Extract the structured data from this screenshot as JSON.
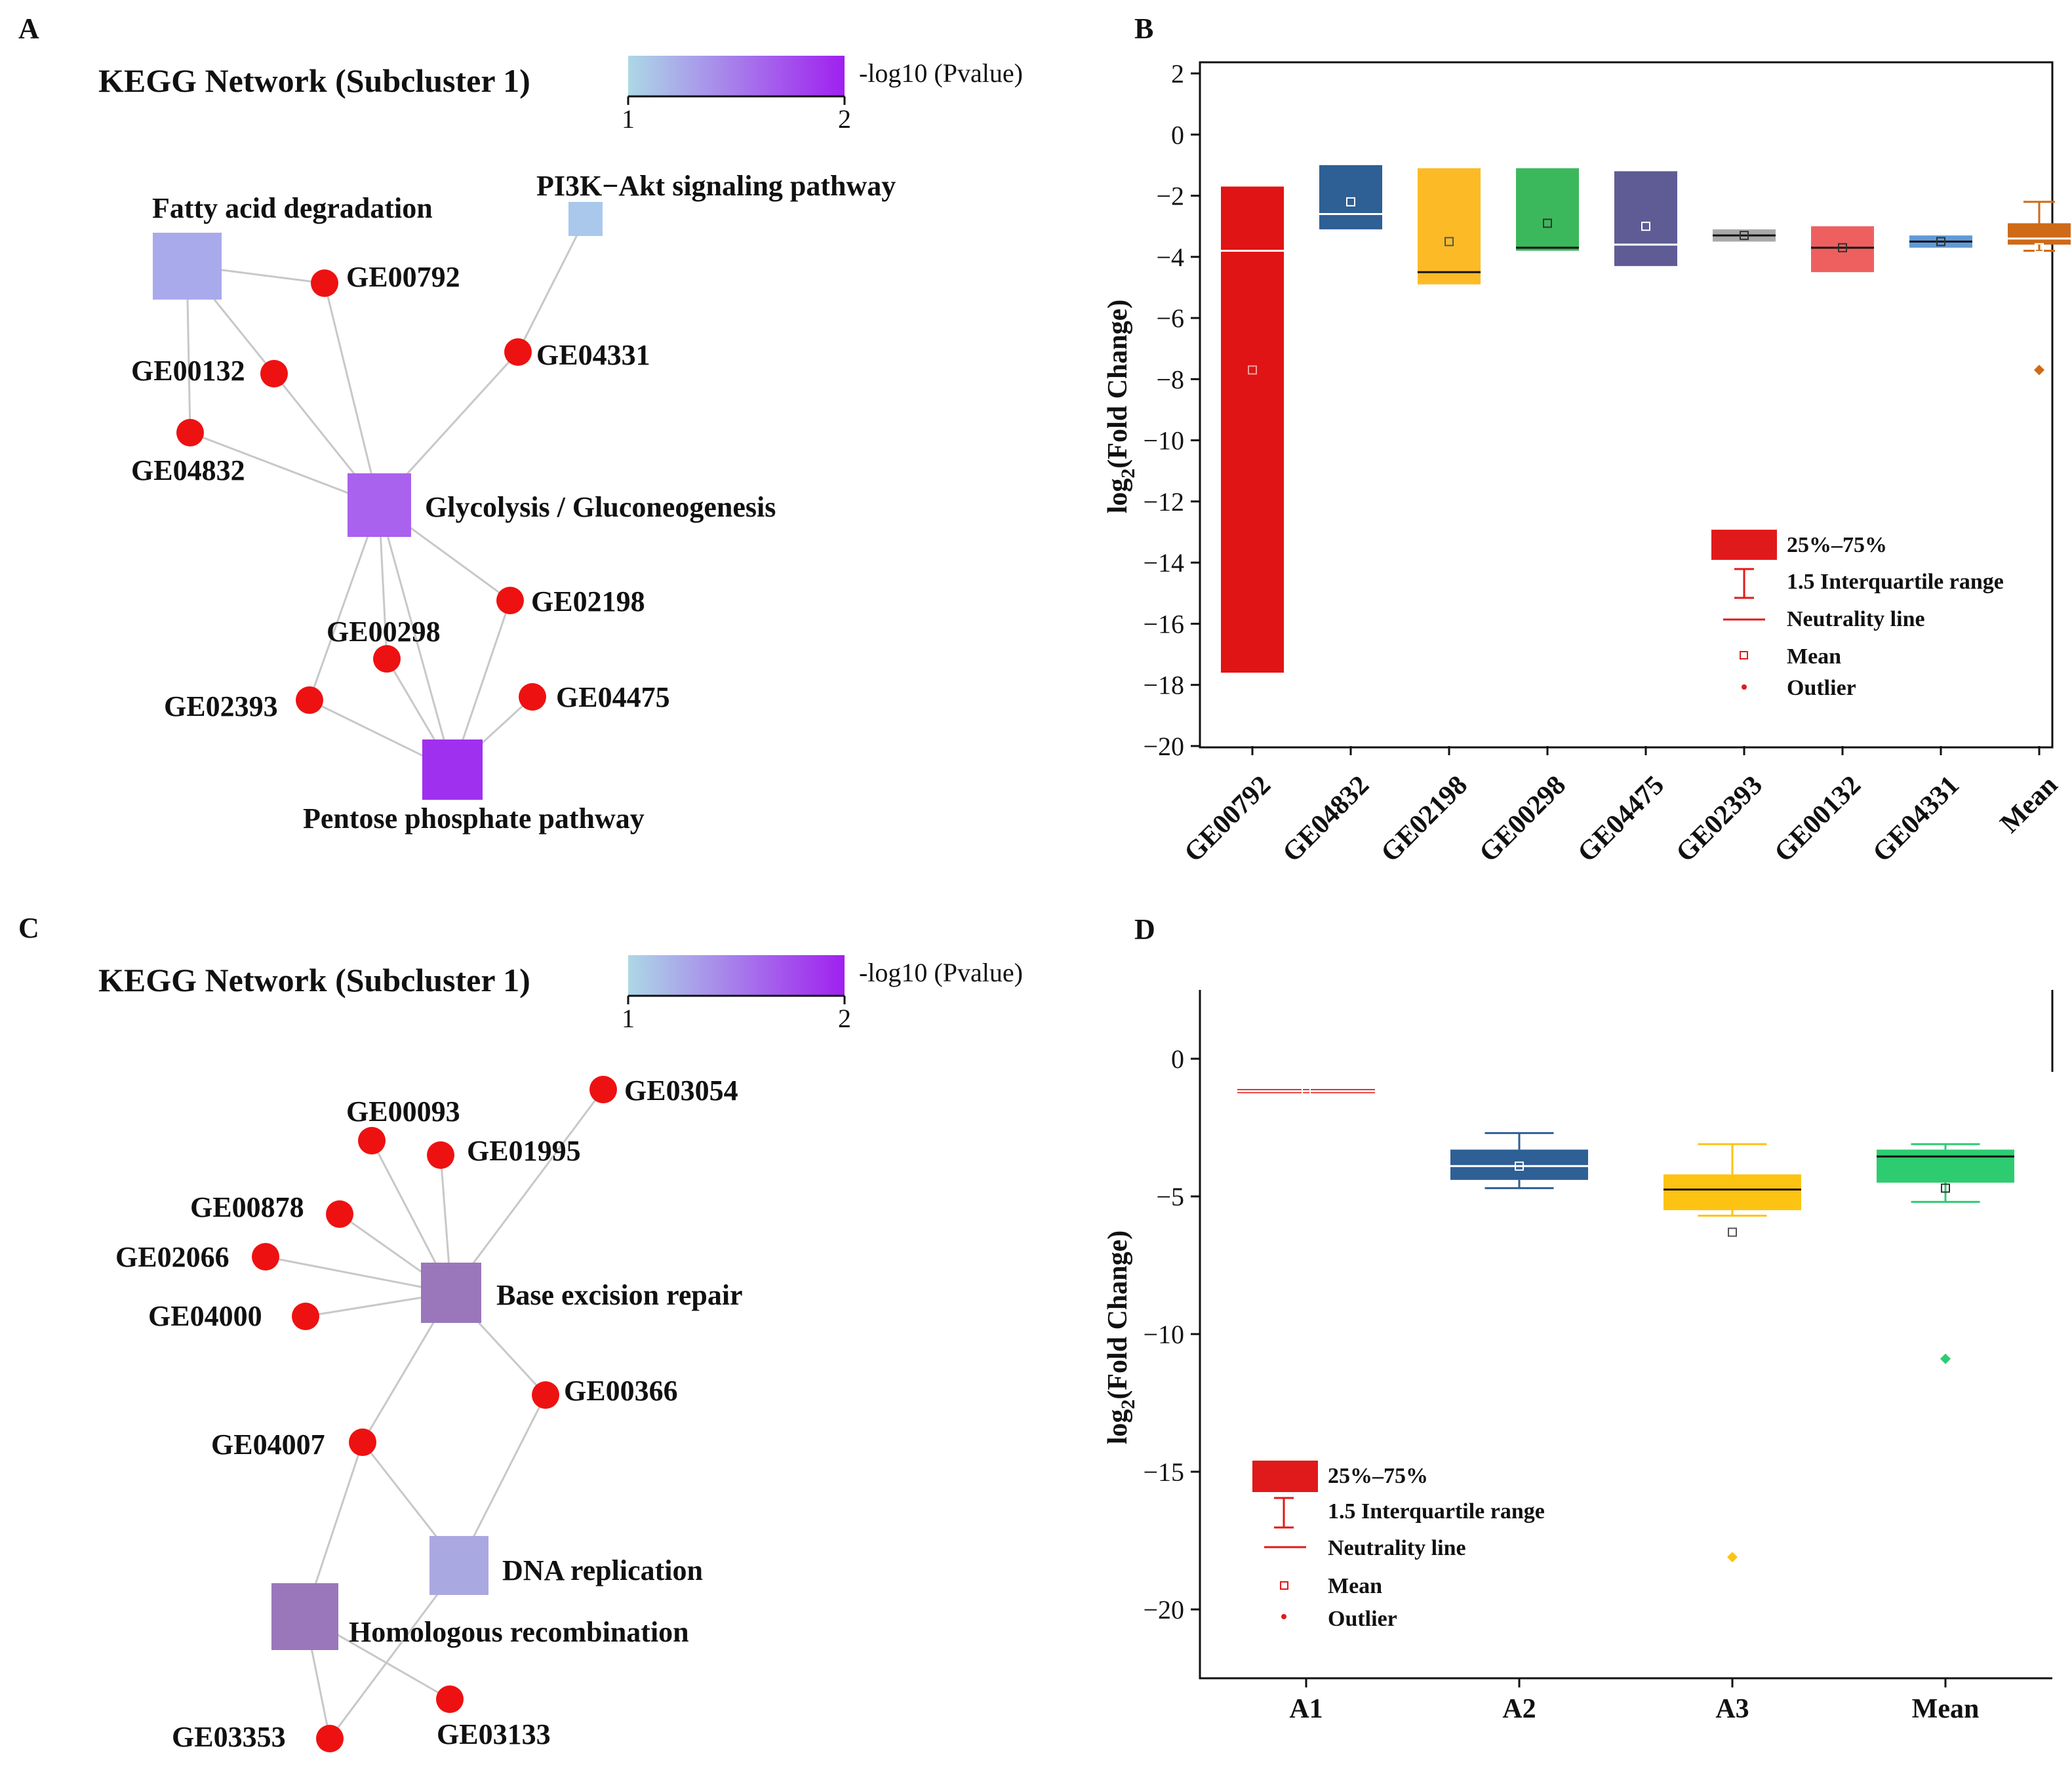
{
  "panels": {
    "A": {
      "letter": "A",
      "title": "KEGG Network (Subcluster 1)",
      "colorbar": {
        "label": "-log10 (Pvalue)",
        "min_label": "1",
        "max_label": "2",
        "color_low": "#add8e6",
        "color_high": "#a020f0"
      },
      "pathways": [
        {
          "id": "fad",
          "label": "Fatty acid degradation",
          "color": "#a9aaec"
        },
        {
          "id": "pi3k",
          "label": "PI3K−Akt signaling pathway",
          "color": "#a9c8ec"
        },
        {
          "id": "glyc",
          "label": "Glycolysis / Gluconeogenesis",
          "color": "#a962ee"
        },
        {
          "id": "ppp",
          "label": "Pentose phosphate pathway",
          "color": "#a030ef"
        }
      ],
      "genes": [
        "GE00792",
        "GE04331",
        "GE00132",
        "GE04832",
        "GE02198",
        "GE00298",
        "GE04475",
        "GE02393"
      ],
      "gene_color": "#ee1111"
    },
    "B": {
      "letter": "B",
      "ylabel_main": "log",
      "ylabel_sub": "2",
      "ylabel_rest": "(Fold Change)",
      "legend": {
        "box": "25%–75%",
        "whisker": "1.5 Interquartile range",
        "line": "Neutrality  line",
        "mean": "Mean",
        "outlier": "Outlier",
        "color": "#e01a1a"
      }
    },
    "C": {
      "letter": "C",
      "title": "KEGG Network (Subcluster 1)",
      "colorbar": {
        "label": "-log10 (Pvalue)",
        "min_label": "1",
        "max_label": "2",
        "color_low": "#add8e6",
        "color_high": "#a020f0"
      },
      "pathways": [
        {
          "id": "ber",
          "label": "Base excision repair",
          "color": "#9a77bb"
        },
        {
          "id": "dna",
          "label": "DNA replication",
          "color": "#aaa8e0"
        },
        {
          "id": "hr",
          "label": "Homologous recombination",
          "color": "#9a77bb"
        }
      ],
      "genes": [
        "GE03054",
        "GE00093",
        "GE01995",
        "GE00878",
        "GE02066",
        "GE04000",
        "GE00366",
        "GE04007",
        "GE03353",
        "GE03133"
      ],
      "gene_color": "#ee1111"
    },
    "D": {
      "letter": "D",
      "ylabel_main": "log",
      "ylabel_sub": "2",
      "ylabel_rest": "(Fold Change)",
      "legend": {
        "box": "25%–75%",
        "whisker": "1.5 Interquartile range",
        "line": "Neutrality  line",
        "mean": "Mean",
        "outlier": "Outlier",
        "color": "#e01a1a"
      }
    }
  },
  "chart_data": [
    {
      "panel": "B",
      "type": "box",
      "ylabel": "log2(Fold Change)",
      "ylim": [
        -20,
        2
      ],
      "yticks": [
        2,
        0,
        -2,
        -4,
        -6,
        -8,
        -10,
        -12,
        -14,
        -16,
        -18,
        -20
      ],
      "ytick_labels": [
        "2",
        "0",
        "−2",
        "−4",
        "−6",
        "−8",
        "−10",
        "−12",
        "−14",
        "−16",
        "−18",
        "−20"
      ],
      "categories": [
        "GE00792",
        "GE04832",
        "GE02198",
        "GE00298",
        "GE04475",
        "GE02393",
        "GE00132",
        "GE04331",
        "Mean"
      ],
      "series": [
        {
          "name": "GE00792",
          "q1": -17.6,
          "q3": -1.7,
          "median": -3.8,
          "mean": -7.7,
          "color": "#e01414",
          "median_color": "#ffffff",
          "mean_color": "#f4a0a0"
        },
        {
          "name": "GE04832",
          "q1": -3.1,
          "q3": -1.0,
          "median": -2.6,
          "mean": -2.2,
          "color": "#2e5f95",
          "median_color": "#ffffff",
          "mean_color": "#ffffff"
        },
        {
          "name": "GE02198",
          "q1": -4.9,
          "q3": -1.1,
          "median": -4.5,
          "mean": -3.5,
          "color": "#fcbb26",
          "median_color": "#111111",
          "mean_color": "#555555"
        },
        {
          "name": "GE00298",
          "q1": -3.8,
          "q3": -1.1,
          "median": -3.7,
          "mean": -2.9,
          "color": "#3cb85c",
          "median_color": "#111111",
          "mean_color": "#333333"
        },
        {
          "name": "GE04475",
          "q1": -4.3,
          "q3": -1.2,
          "median": -3.6,
          "mean": -3.0,
          "color": "#5f5b95",
          "median_color": "#ffffff",
          "mean_color": "#ffffff"
        },
        {
          "name": "GE02393",
          "q1": -3.5,
          "q3": -3.1,
          "median": -3.3,
          "mean": -3.3,
          "color": "#a9a9a9",
          "median_color": "#111111",
          "mean_color": "#333333"
        },
        {
          "name": "GE00132",
          "q1": -4.5,
          "q3": -3.0,
          "median": -3.7,
          "mean": -3.7,
          "color": "#ee6060",
          "median_color": "#111111",
          "mean_color": "#333333"
        },
        {
          "name": "GE04331",
          "q1": -3.7,
          "q3": -3.3,
          "median": -3.5,
          "mean": -3.5,
          "color": "#5f9ad8",
          "median_color": "#111111",
          "mean_color": "#333333"
        },
        {
          "name": "Mean",
          "q1": -3.6,
          "q3": -2.9,
          "median": -3.4,
          "mean": -3.7,
          "whisker_low": -3.8,
          "whisker_high": -2.2,
          "outliers": [
            -7.7
          ],
          "color": "#cf6a16",
          "median_color": "#ffffff",
          "mean_color": "#ffffff"
        }
      ]
    },
    {
      "panel": "D",
      "type": "box",
      "ylabel": "log2(Fold Change)",
      "ylim": [
        -22.5,
        2.5
      ],
      "yticks": [
        0,
        -5,
        -10,
        -15,
        -20
      ],
      "ytick_labels": [
        "0",
        "−5",
        "−10",
        "−15",
        "−20"
      ],
      "categories": [
        "A1",
        "A2",
        "A3",
        "Mean"
      ],
      "series": [
        {
          "name": "A1",
          "q1": -1.25,
          "q3": -1.1,
          "median": -1.18,
          "mean": -1.18,
          "color": "#e01a1a",
          "median_color": "#ffffff",
          "mean_color": "#ffffff"
        },
        {
          "name": "A2",
          "q1": -4.4,
          "q3": -3.3,
          "median": -3.9,
          "mean": -3.9,
          "whisker_low": -4.7,
          "whisker_high": -2.7,
          "color": "#2e5f95",
          "median_color": "#ffffff",
          "mean_color": "#ffffff"
        },
        {
          "name": "A3",
          "q1": -5.5,
          "q3": -4.2,
          "median": -4.75,
          "mean": -6.3,
          "whisker_low": -5.7,
          "whisker_high": -3.1,
          "outliers": [
            -18.1
          ],
          "color": "#fdc313",
          "median_color": "#111111",
          "mean_color": "#555555"
        },
        {
          "name": "Mean",
          "q1": -4.5,
          "q3": -3.3,
          "median": -3.55,
          "mean": -4.7,
          "whisker_low": -5.2,
          "whisker_high": -3.1,
          "outliers": [
            -10.9
          ],
          "color": "#2ecc71",
          "median_color": "#111111",
          "mean_color": "#333333"
        }
      ]
    }
  ]
}
